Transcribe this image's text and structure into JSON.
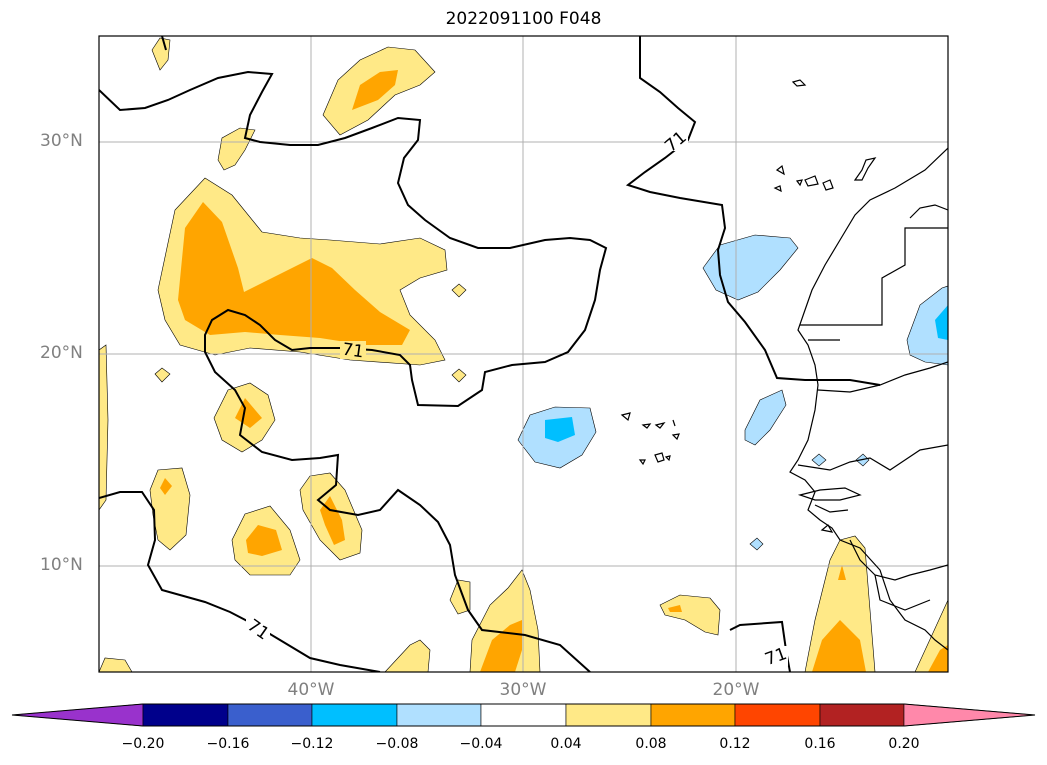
{
  "title": "2022091100 F048",
  "contour_label": "71",
  "lat_labels": [
    "30°N",
    "20°N",
    "10°N"
  ],
  "lon_labels": [
    "40°W",
    "30°W",
    "20°W"
  ],
  "colorbar": {
    "ticks": [
      "−0.20",
      "−0.16",
      "−0.12",
      "−0.08",
      "−0.04",
      "0.04",
      "0.08",
      "0.12",
      "0.16",
      "0.20"
    ],
    "colors": [
      "#9932cc",
      "#00008b",
      "#3a5fcd",
      "#00bfff",
      "#b0e0ff",
      "#ffffff",
      "#ffe987",
      "#ffa500",
      "#ff4500",
      "#b22222",
      "#ff88aa",
      "#ff88aa"
    ]
  }
}
